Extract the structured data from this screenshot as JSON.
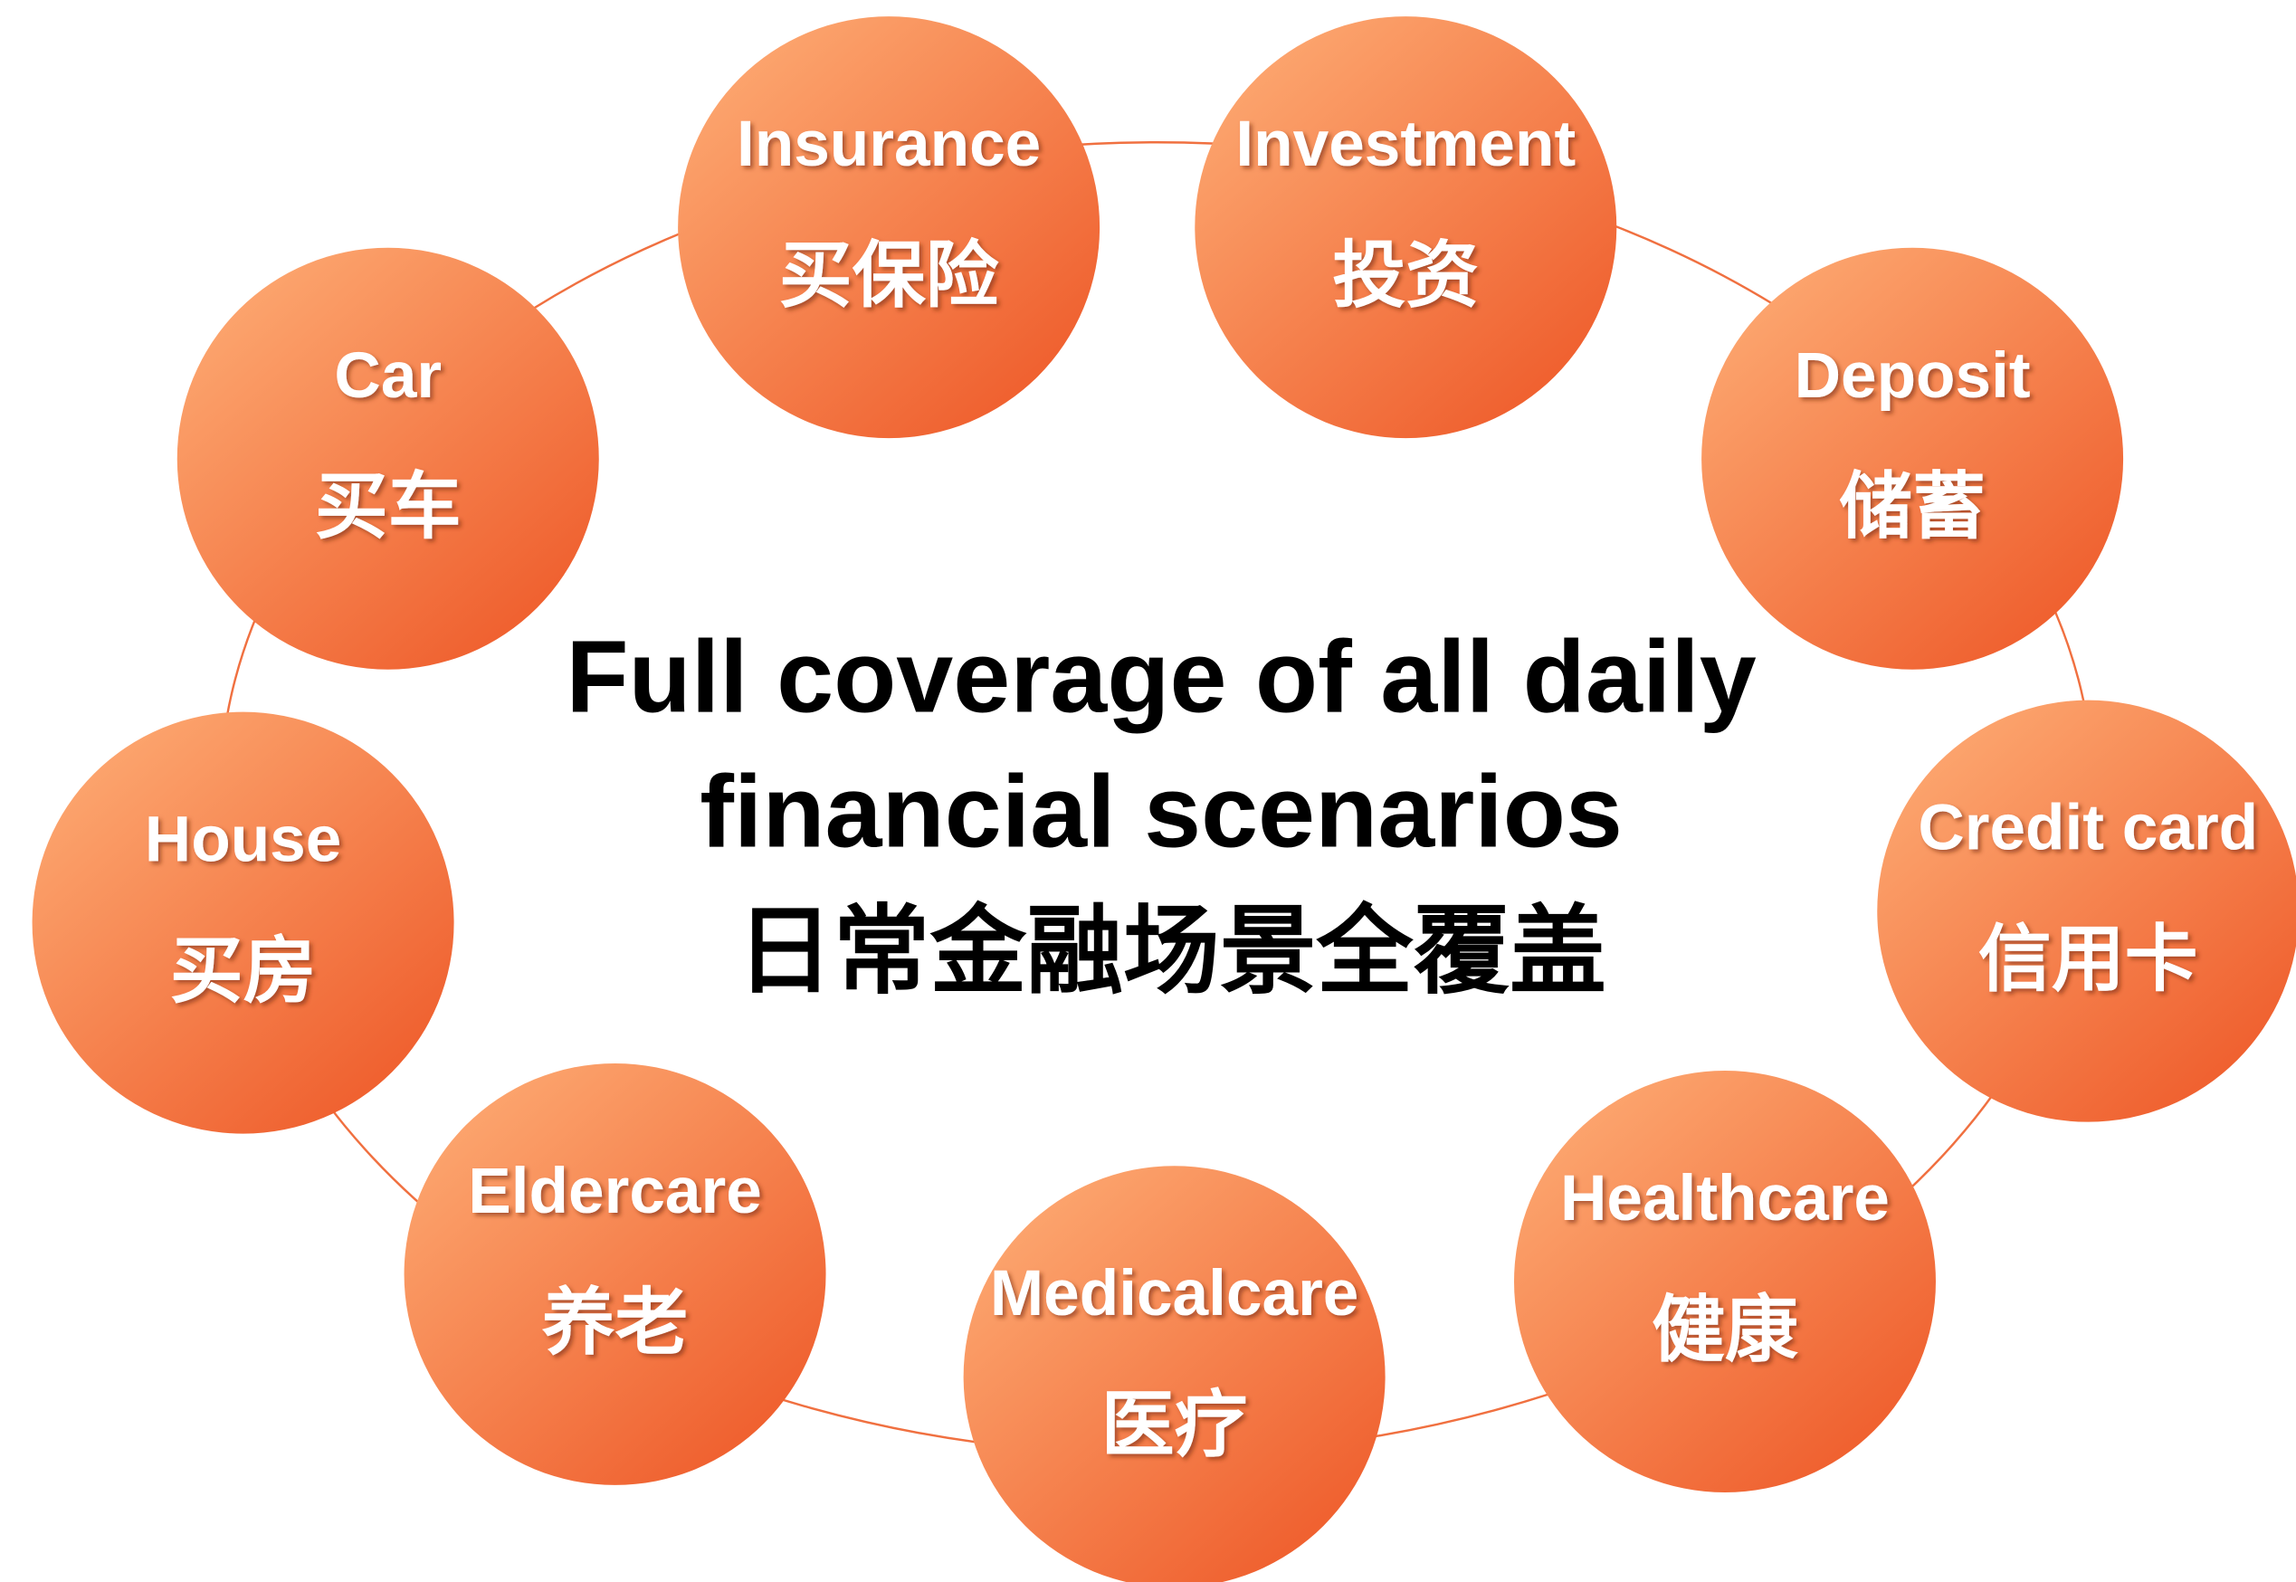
{
  "title": {
    "line1": "Full coverage of all daily",
    "line2": "financial scenarios",
    "chinese": "日常金融场景全覆盖"
  },
  "nodes": [
    {
      "label": "Insurance",
      "chinese": "买保险"
    },
    {
      "label": "Investment",
      "chinese": "投资"
    },
    {
      "label": "Deposit",
      "chinese": "储蓄"
    },
    {
      "label": "Credit card",
      "chinese": "信用卡"
    },
    {
      "label": "Healthcare",
      "chinese": "健康"
    },
    {
      "label": "Medicalcare",
      "chinese": "医疗"
    },
    {
      "label": "Eldercare",
      "chinese": "养老"
    },
    {
      "label": "House",
      "chinese": "买房"
    },
    {
      "label": "Car",
      "chinese": "买车"
    }
  ]
}
